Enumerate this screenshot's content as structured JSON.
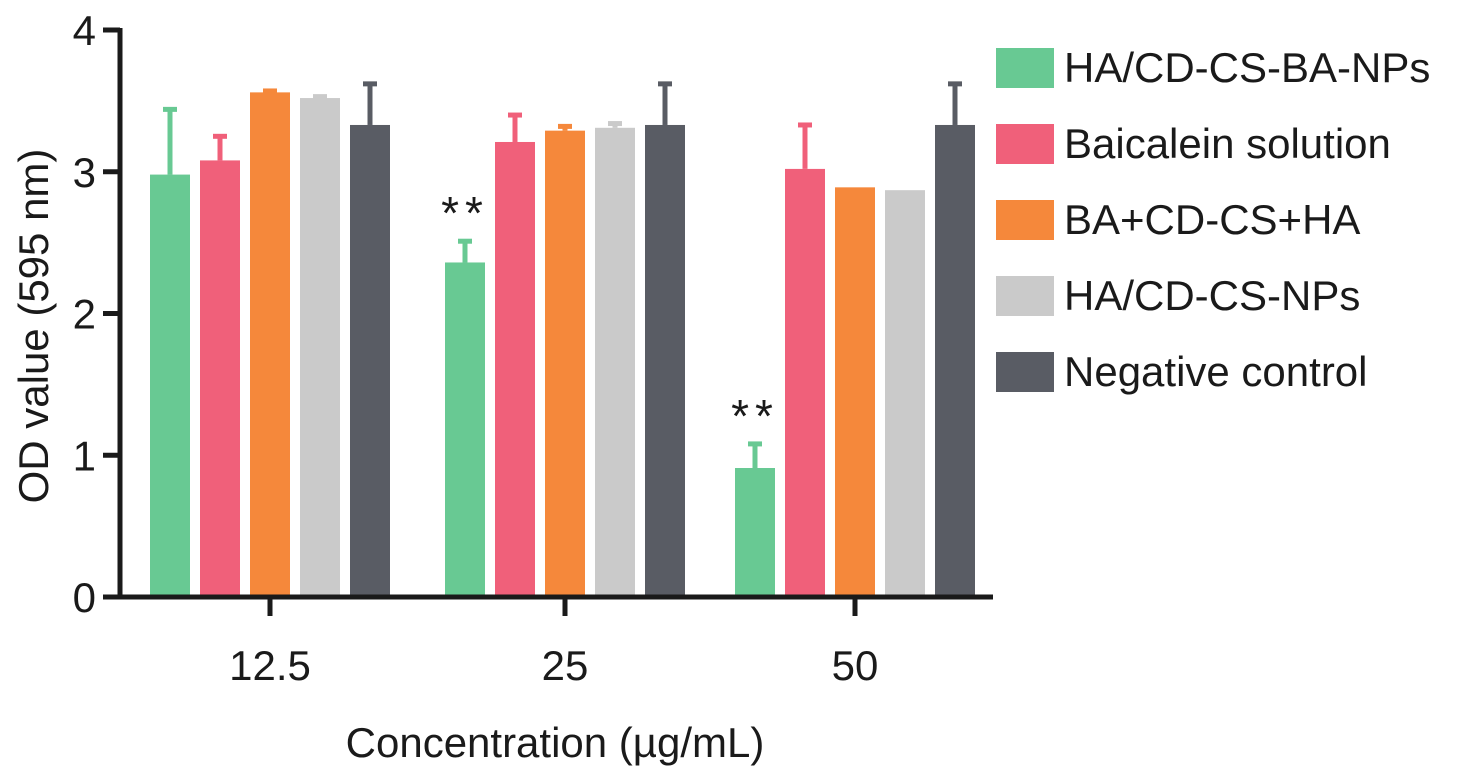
{
  "chart_data": {
    "type": "bar",
    "xlabel": "Concentration (µg/mL)",
    "ylabel": "OD value (595 nm)",
    "ylim": [
      0,
      4
    ],
    "yticks": [
      "0",
      "1",
      "2",
      "3",
      "4"
    ],
    "categories": [
      "12.5",
      "25",
      "50"
    ],
    "legend_position": "right",
    "series": [
      {
        "name": "HA/CD-CS-BA-NPs",
        "color": "#68c993",
        "values": [
          2.98,
          2.36,
          0.91
        ],
        "errors": [
          0.46,
          0.15,
          0.17
        ],
        "annotations": [
          "",
          "**",
          "**"
        ]
      },
      {
        "name": "Baicalein solution",
        "color": "#f0607a",
        "values": [
          3.08,
          3.21,
          3.02
        ],
        "errors": [
          0.17,
          0.19,
          0.31
        ],
        "annotations": [
          "",
          "",
          ""
        ]
      },
      {
        "name": "BA+CD-CS+HA",
        "color": "#f5883b",
        "values": [
          3.56,
          3.29,
          2.89
        ],
        "errors": [
          0.01,
          0.03,
          0.0
        ],
        "annotations": [
          "",
          "",
          ""
        ]
      },
      {
        "name": "HA/CD-CS-NPs",
        "color": "#cacaca",
        "values": [
          3.52,
          3.31,
          2.87
        ],
        "errors": [
          0.01,
          0.03,
          0.0
        ],
        "annotations": [
          "",
          "",
          ""
        ]
      },
      {
        "name": "Negative control",
        "color": "#595c64",
        "values": [
          3.33,
          3.33,
          3.33
        ],
        "errors": [
          0.29,
          0.29,
          0.29
        ],
        "annotations": [
          "",
          "",
          ""
        ]
      }
    ]
  }
}
